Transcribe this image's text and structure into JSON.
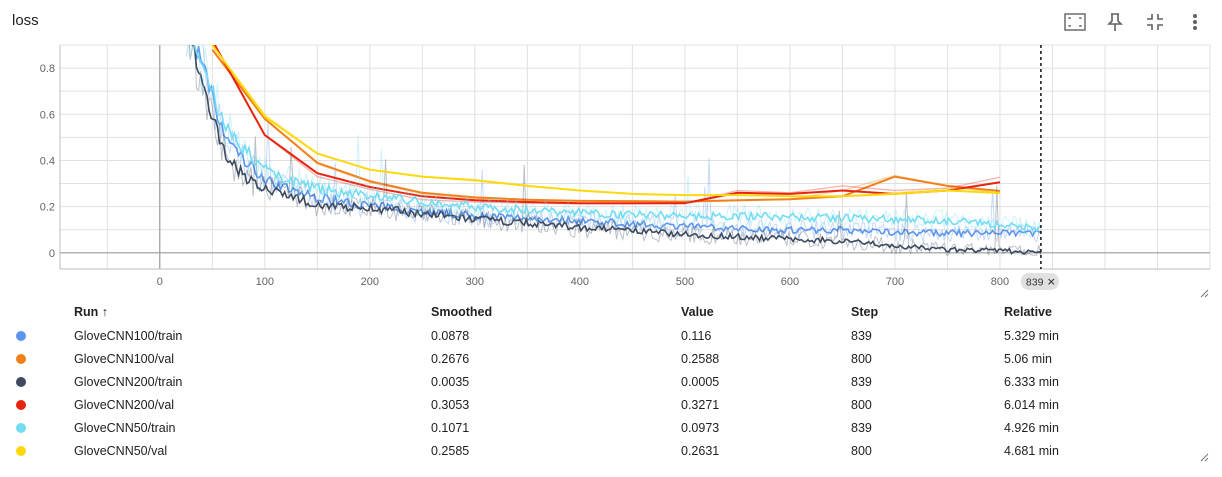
{
  "card": {
    "title": "loss"
  },
  "toolbar": [
    {
      "name": "fit-domain-button",
      "icon": "fit-to-data-icon"
    },
    {
      "name": "pin-button",
      "icon": "pin-icon"
    },
    {
      "name": "collapse-button",
      "icon": "collapse-icon"
    },
    {
      "name": "more-menu-button",
      "icon": "more-vert-icon"
    }
  ],
  "chart_data": {
    "type": "line",
    "title": "loss",
    "xlabel": "",
    "ylabel": "",
    "xlim": [
      -95,
      1000
    ],
    "ylim": [
      -0.07,
      0.9
    ],
    "x_ticks": [
      "0",
      "100",
      "200",
      "300",
      "400",
      "500",
      "600",
      "700",
      "800"
    ],
    "y_ticks": [
      "0",
      "0.2",
      "0.4",
      "0.6",
      "0.8"
    ],
    "grid": true,
    "step_marker": {
      "step": 839,
      "label": "839"
    },
    "series": [
      {
        "name": "GloveCNN100/train",
        "color": "#5c95ed",
        "kind": "train",
        "smoothed_x": [
          25,
          40,
          60,
          80,
          100,
          125,
          150,
          175,
          200,
          250,
          300,
          350,
          400,
          450,
          500,
          550,
          600,
          650,
          700,
          750,
          800,
          839
        ],
        "smoothed_y": [
          1.0,
          0.82,
          0.52,
          0.4,
          0.32,
          0.27,
          0.24,
          0.22,
          0.205,
          0.18,
          0.16,
          0.15,
          0.14,
          0.125,
          0.115,
          0.105,
          0.1,
          0.1,
          0.09,
          0.085,
          0.085,
          0.0878
        ]
      },
      {
        "name": "GloveCNN100/val",
        "color": "#f2801a",
        "kind": "val",
        "x": [
          50,
          100,
          150,
          200,
          250,
          300,
          350,
          400,
          450,
          500,
          550,
          600,
          650,
          700,
          750,
          800
        ],
        "y": [
          0.88,
          0.585,
          0.385,
          0.305,
          0.255,
          0.235,
          0.228,
          0.226,
          0.224,
          0.222,
          0.225,
          0.232,
          0.27,
          0.335,
          0.29,
          0.2588
        ],
        "smoothed_y": [
          0.88,
          0.58,
          0.39,
          0.31,
          0.26,
          0.24,
          0.23,
          0.225,
          0.224,
          0.222,
          0.228,
          0.232,
          0.245,
          0.33,
          0.29,
          0.2676
        ]
      },
      {
        "name": "GloveCNN200/train",
        "color": "#3d4a5f",
        "kind": "train",
        "smoothed_x": [
          25,
          40,
          60,
          80,
          100,
          125,
          150,
          175,
          200,
          250,
          300,
          350,
          400,
          450,
          500,
          550,
          600,
          650,
          700,
          750,
          800,
          839
        ],
        "smoothed_y": [
          1.0,
          0.72,
          0.45,
          0.33,
          0.28,
          0.24,
          0.21,
          0.2,
          0.195,
          0.17,
          0.145,
          0.13,
          0.11,
          0.095,
          0.08,
          0.07,
          0.06,
          0.05,
          0.03,
          0.015,
          0.008,
          0.0035
        ]
      },
      {
        "name": "GloveCNN200/val",
        "color": "#e8230e",
        "kind": "val",
        "x": [
          50,
          100,
          150,
          200,
          250,
          300,
          350,
          400,
          450,
          500,
          550,
          600,
          650,
          700,
          750,
          800
        ],
        "y": [
          0.92,
          0.51,
          0.33,
          0.275,
          0.23,
          0.22,
          0.215,
          0.212,
          0.212,
          0.214,
          0.27,
          0.26,
          0.29,
          0.27,
          0.28,
          0.3271
        ],
        "smoothed_y": [
          0.92,
          0.51,
          0.345,
          0.285,
          0.245,
          0.228,
          0.22,
          0.215,
          0.215,
          0.215,
          0.26,
          0.255,
          0.27,
          0.255,
          0.27,
          0.3053
        ]
      },
      {
        "name": "GloveCNN50/train",
        "color": "#74dcf2",
        "kind": "train",
        "smoothed_x": [
          25,
          40,
          60,
          80,
          100,
          125,
          150,
          175,
          200,
          250,
          300,
          350,
          400,
          450,
          500,
          550,
          600,
          650,
          700,
          750,
          800,
          839
        ],
        "smoothed_y": [
          1.0,
          0.82,
          0.57,
          0.45,
          0.36,
          0.31,
          0.28,
          0.26,
          0.25,
          0.22,
          0.2,
          0.185,
          0.175,
          0.165,
          0.16,
          0.16,
          0.155,
          0.15,
          0.145,
          0.14,
          0.12,
          0.1071
        ]
      },
      {
        "name": "GloveCNN50/val",
        "color": "#fdd80c",
        "kind": "val",
        "x": [
          50,
          100,
          150,
          200,
          250,
          300,
          350,
          400,
          450,
          500,
          550,
          600,
          650,
          700,
          750,
          800
        ],
        "y": [
          0.9,
          0.6,
          0.43,
          0.36,
          0.33,
          0.31,
          0.29,
          0.27,
          0.255,
          0.25,
          0.25,
          0.245,
          0.245,
          0.26,
          0.28,
          0.2631
        ],
        "smoothed_y": [
          0.9,
          0.59,
          0.43,
          0.36,
          0.33,
          0.315,
          0.29,
          0.27,
          0.255,
          0.25,
          0.25,
          0.245,
          0.245,
          0.255,
          0.27,
          0.2585
        ]
      }
    ]
  },
  "table": {
    "headers": {
      "run": "Run ↑",
      "smoothed": "Smoothed",
      "value": "Value",
      "step": "Step",
      "relative": "Relative"
    },
    "rows": [
      {
        "color": "#5c95ed",
        "run": "GloveCNN100/train",
        "smoothed": "0.0878",
        "value": "0.116",
        "step": "839",
        "relative": "5.329 min"
      },
      {
        "color": "#f2801a",
        "run": "GloveCNN100/val",
        "smoothed": "0.2676",
        "value": "0.2588",
        "step": "800",
        "relative": "5.06 min"
      },
      {
        "color": "#3d4a5f",
        "run": "GloveCNN200/train",
        "smoothed": "0.0035",
        "value": "0.0005",
        "step": "839",
        "relative": "6.333 min"
      },
      {
        "color": "#e8230e",
        "run": "GloveCNN200/val",
        "smoothed": "0.3053",
        "value": "0.3271",
        "step": "800",
        "relative": "6.014 min"
      },
      {
        "color": "#74dcf2",
        "run": "GloveCNN50/train",
        "smoothed": "0.1071",
        "value": "0.0973",
        "step": "839",
        "relative": "4.926 min"
      },
      {
        "color": "#fdd80c",
        "run": "GloveCNN50/val",
        "smoothed": "0.2585",
        "value": "0.2631",
        "step": "800",
        "relative": "4.681 min"
      }
    ]
  }
}
